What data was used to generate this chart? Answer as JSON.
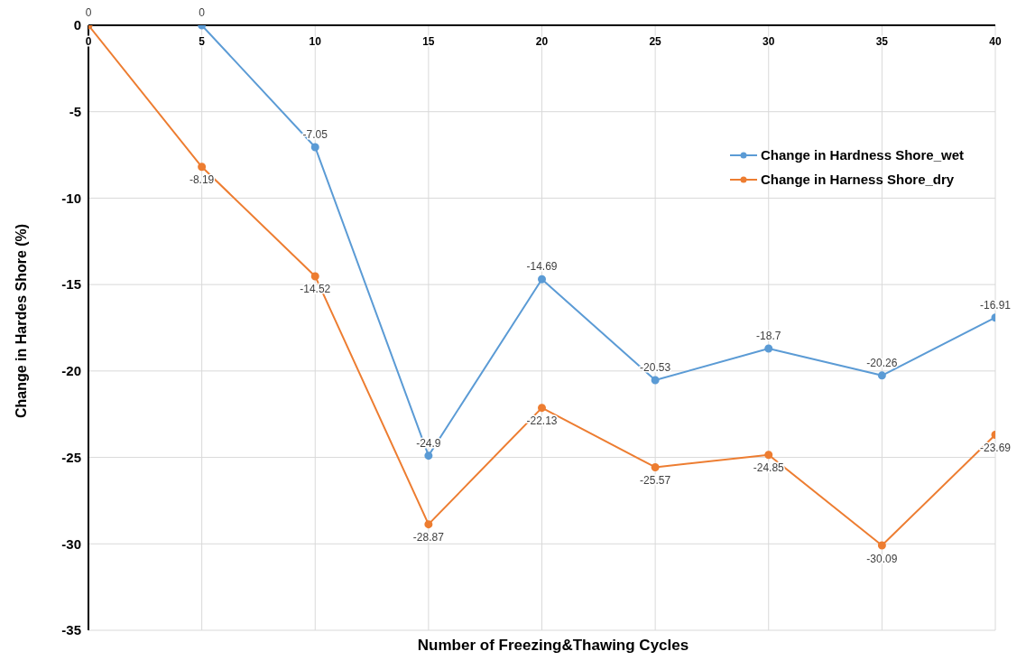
{
  "chart_data": {
    "type": "line",
    "xlabel": "Number of Freezing&Thawing Cycles",
    "ylabel": "Change in Hardes Shore (%)",
    "x": [
      0,
      5,
      10,
      15,
      20,
      25,
      30,
      35,
      40
    ],
    "series": [
      {
        "name": "Change in Hardness Shore_wet",
        "color": "#5b9bd5",
        "values": [
          0,
          0,
          -7.05,
          -24.9,
          -14.69,
          -20.53,
          -18.7,
          -20.26,
          -16.91
        ],
        "value_labels": [
          "0",
          "0",
          "-7.05",
          "-24.9",
          "-14.69",
          "-20.53",
          "-18.7",
          "-20.26",
          "-16.91"
        ]
      },
      {
        "name": "Change in Harness Shore_dry",
        "color": "#ed7d31",
        "values": [
          0,
          -8.19,
          -14.52,
          -28.87,
          -22.13,
          -25.57,
          -24.85,
          -30.09,
          -23.69
        ],
        "value_labels": [
          null,
          "-8.19",
          "-14.52",
          "-28.87",
          "-22.13",
          "-25.57",
          "-24.85",
          "-30.09",
          "-23.69"
        ]
      }
    ],
    "xlim": [
      0,
      40
    ],
    "xticks": [
      0,
      5,
      10,
      15,
      20,
      25,
      30,
      35,
      40
    ],
    "ylim": [
      -35,
      0
    ],
    "yticks": [
      -35,
      -30,
      -25,
      -20,
      -15,
      -10,
      -5,
      0
    ],
    "grid": true,
    "legend": "top right",
    "marker": "circle",
    "line_style": "solid"
  }
}
